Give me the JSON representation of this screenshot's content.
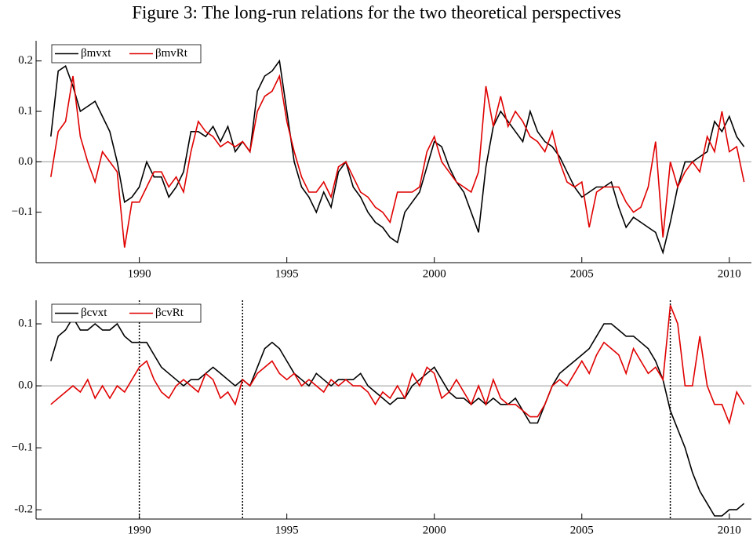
{
  "title": "Figure 3: The long-run relations for the two theoretical perspectives",
  "chart_data": [
    {
      "type": "line",
      "x": [
        1987,
        1987.25,
        1987.5,
        1987.75,
        1988,
        1988.25,
        1988.5,
        1988.75,
        1989,
        1989.25,
        1989.5,
        1989.75,
        1990,
        1990.25,
        1990.5,
        1990.75,
        1991,
        1991.25,
        1991.5,
        1991.75,
        1992,
        1992.25,
        1992.5,
        1992.75,
        1993,
        1993.25,
        1993.5,
        1993.75,
        1994,
        1994.25,
        1994.5,
        1994.75,
        1995,
        1995.25,
        1995.5,
        1995.75,
        1996,
        1996.25,
        1996.5,
        1996.75,
        1997,
        1997.25,
        1997.5,
        1997.75,
        1998,
        1998.25,
        1998.5,
        1998.75,
        1999,
        1999.25,
        1999.5,
        1999.75,
        2000,
        2000.25,
        2000.5,
        2000.75,
        2001,
        2001.25,
        2001.5,
        2001.75,
        2002,
        2002.25,
        2002.5,
        2002.75,
        2003,
        2003.25,
        2003.5,
        2003.75,
        2004,
        2004.25,
        2004.5,
        2004.75,
        2005,
        2005.25,
        2005.5,
        2005.75,
        2006,
        2006.25,
        2006.5,
        2006.75,
        2007,
        2007.25,
        2007.5,
        2007.75,
        2008,
        2008.25,
        2008.5,
        2008.75,
        2009,
        2009.25,
        2009.5,
        2009.75,
        2010,
        2010.25,
        2010.5
      ],
      "series": [
        {
          "name": "βmvxt",
          "color": "#000000",
          "values": [
            0.05,
            0.18,
            0.19,
            0.15,
            0.1,
            0.11,
            0.12,
            0.09,
            0.06,
            0,
            -0.08,
            -0.07,
            -0.05,
            0,
            -0.03,
            -0.03,
            -0.07,
            -0.05,
            -0.02,
            0.06,
            0.06,
            0.05,
            0.07,
            0.04,
            0.07,
            0.02,
            0.04,
            0.02,
            0.14,
            0.17,
            0.18,
            0.2,
            0.1,
            0,
            -0.05,
            -0.07,
            -0.1,
            -0.06,
            -0.09,
            -0.02,
            0,
            -0.05,
            -0.07,
            -0.1,
            -0.12,
            -0.13,
            -0.15,
            -0.16,
            -0.1,
            -0.08,
            -0.06,
            -0.01,
            0.04,
            0.03,
            -0.01,
            -0.04,
            -0.06,
            -0.1,
            -0.14,
            -0.01,
            0.07,
            0.1,
            0.08,
            0.06,
            0.04,
            0.1,
            0.06,
            0.04,
            0.03,
            0.01,
            -0.02,
            -0.05,
            -0.07,
            -0.06,
            -0.05,
            -0.05,
            -0.04,
            -0.09,
            -0.13,
            -0.11,
            -0.12,
            -0.13,
            -0.14,
            -0.18,
            -0.12,
            -0.05,
            0,
            0,
            0.01,
            0.02,
            0.08,
            0.06,
            0.09,
            0.05,
            0.03
          ]
        },
        {
          "name": "βmvRt",
          "color": "#e00000",
          "values": [
            -0.03,
            0.06,
            0.08,
            0.17,
            0.05,
            0,
            -0.04,
            0.02,
            0,
            -0.02,
            -0.17,
            -0.08,
            -0.08,
            -0.05,
            -0.02,
            -0.02,
            -0.05,
            -0.03,
            -0.06,
            0.02,
            0.08,
            0.06,
            0.05,
            0.03,
            0.04,
            0.03,
            0.04,
            0.02,
            0.1,
            0.13,
            0.14,
            0.17,
            0.08,
            0.02,
            -0.03,
            -0.06,
            -0.06,
            -0.04,
            -0.07,
            -0.01,
            0,
            -0.03,
            -0.06,
            -0.07,
            -0.09,
            -0.1,
            -0.12,
            -0.06,
            -0.06,
            -0.06,
            -0.05,
            0.02,
            0.05,
            0,
            -0.02,
            -0.04,
            -0.05,
            -0.06,
            -0.02,
            0.15,
            0.07,
            0.13,
            0.07,
            0.1,
            0.08,
            0.05,
            0.04,
            0.02,
            0.06,
            0,
            -0.04,
            -0.05,
            -0.04,
            -0.13,
            -0.06,
            -0.05,
            -0.05,
            -0.05,
            -0.08,
            -0.1,
            -0.09,
            -0.05,
            0.04,
            -0.15,
            0,
            -0.05,
            -0.02,
            0,
            -0.02,
            0.05,
            0.02,
            0.1,
            0.02,
            0.03,
            -0.04
          ]
        }
      ],
      "xlim": [
        1986.5,
        2010.75
      ],
      "xticks": [
        1990,
        1995,
        2000,
        2005,
        2010
      ],
      "ylim": [
        -0.2,
        0.24
      ],
      "yticks": [
        {
          "value": -0.1,
          "label": "−0.1"
        },
        {
          "value": 0,
          "label": "0.0"
        },
        0.1,
        0.2
      ],
      "zero_line": true,
      "legend": "top-left"
    },
    {
      "type": "line",
      "x": [
        1987,
        1987.25,
        1987.5,
        1987.75,
        1988,
        1988.25,
        1988.5,
        1988.75,
        1989,
        1989.25,
        1989.5,
        1989.75,
        1990,
        1990.25,
        1990.5,
        1990.75,
        1991,
        1991.25,
        1991.5,
        1991.75,
        1992,
        1992.25,
        1992.5,
        1992.75,
        1993,
        1993.25,
        1993.5,
        1993.75,
        1994,
        1994.25,
        1994.5,
        1994.75,
        1995,
        1995.25,
        1995.5,
        1995.75,
        1996,
        1996.25,
        1996.5,
        1996.75,
        1997,
        1997.25,
        1997.5,
        1997.75,
        1998,
        1998.25,
        1998.5,
        1998.75,
        1999,
        1999.25,
        1999.5,
        1999.75,
        2000,
        2000.25,
        2000.5,
        2000.75,
        2001,
        2001.25,
        2001.5,
        2001.75,
        2002,
        2002.25,
        2002.5,
        2002.75,
        2003,
        2003.25,
        2003.5,
        2003.75,
        2004,
        2004.25,
        2004.5,
        2004.75,
        2005,
        2005.25,
        2005.5,
        2005.75,
        2006,
        2006.25,
        2006.5,
        2006.75,
        2007,
        2007.25,
        2007.5,
        2007.75,
        2008,
        2008.25,
        2008.5,
        2008.75,
        2009,
        2009.25,
        2009.5,
        2009.75,
        2010,
        2010.25,
        2010.5
      ],
      "series": [
        {
          "name": "βcvxt",
          "color": "#000000",
          "values": [
            0.04,
            0.08,
            0.09,
            0.11,
            0.09,
            0.09,
            0.1,
            0.09,
            0.09,
            0.1,
            0.08,
            0.07,
            0.07,
            0.07,
            0.05,
            0.03,
            0.02,
            0.01,
            0,
            0.01,
            0.01,
            0.02,
            0.03,
            0.02,
            0.01,
            0,
            0.01,
            0,
            0.03,
            0.06,
            0.07,
            0.06,
            0.04,
            0.02,
            0.01,
            0,
            0.02,
            0.01,
            0,
            0.01,
            0.01,
            0.01,
            0.02,
            0,
            -0.01,
            -0.02,
            -0.03,
            -0.02,
            -0.02,
            0,
            0.01,
            0.02,
            0.03,
            0.01,
            -0.01,
            -0.02,
            -0.02,
            -0.03,
            -0.02,
            -0.03,
            -0.02,
            -0.03,
            -0.03,
            -0.02,
            -0.04,
            -0.06,
            -0.06,
            -0.03,
            0,
            0.02,
            0.03,
            0.04,
            0.05,
            0.06,
            0.08,
            0.1,
            0.1,
            0.09,
            0.08,
            0.08,
            0.07,
            0.06,
            0.04,
            0.01,
            -0.04,
            -0.07,
            -0.1,
            -0.14,
            -0.17,
            -0.19,
            -0.21,
            -0.21,
            -0.2,
            -0.2,
            -0.19
          ]
        },
        {
          "name": "βcvRt",
          "color": "#e00000",
          "values": [
            -0.03,
            -0.02,
            -0.01,
            0,
            -0.01,
            0.01,
            -0.02,
            0,
            -0.02,
            0,
            -0.01,
            0.01,
            0.03,
            0.04,
            0.01,
            -0.01,
            -0.02,
            0,
            0.01,
            0,
            -0.01,
            0.02,
            0.01,
            -0.02,
            -0.01,
            -0.03,
            0.01,
            0,
            0.02,
            0.03,
            0.04,
            0.02,
            0.01,
            0.02,
            0,
            0.01,
            0,
            -0.01,
            0.01,
            0,
            0.01,
            0,
            0,
            -0.01,
            -0.03,
            -0.01,
            -0.02,
            0,
            -0.02,
            0.02,
            0,
            0.03,
            0.02,
            -0.02,
            -0.01,
            0.01,
            -0.01,
            -0.03,
            0,
            -0.03,
            0.01,
            -0.02,
            -0.03,
            -0.03,
            -0.04,
            -0.05,
            -0.05,
            -0.03,
            0,
            0.01,
            0,
            0.02,
            0.04,
            0.02,
            0.05,
            0.07,
            0.06,
            0.05,
            0.02,
            0.06,
            0.04,
            0.02,
            0.03,
            0.01,
            0.13,
            0.1,
            0,
            0,
            0.08,
            0,
            -0.03,
            -0.03,
            -0.06,
            -0.01,
            -0.03
          ]
        }
      ],
      "xlim": [
        1986.5,
        2010.75
      ],
      "xticks": [
        1990,
        1995,
        2000,
        2005,
        2010
      ],
      "ylim": [
        -0.215,
        0.138
      ],
      "yticks": [
        -0.2,
        {
          "value": -0.1,
          "label": "−0.1"
        },
        {
          "value": 0,
          "label": "0.0"
        },
        0.1
      ],
      "vlines": [
        1990,
        1993.5,
        2008
      ],
      "zero_line": true,
      "legend": "top-left"
    }
  ]
}
